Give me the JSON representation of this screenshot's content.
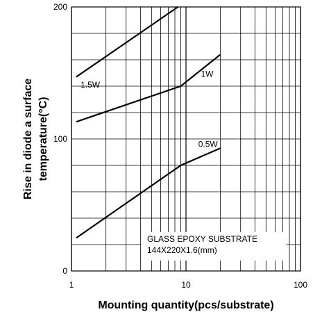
{
  "chart_data": {
    "type": "line",
    "xlabel": "Mounting quantity(pcs/substrate)",
    "ylabel": [
      "Rise in diode a surface",
      "temperature(°C)"
    ],
    "x_scale": "log",
    "xlim": [
      1,
      100
    ],
    "ylim": [
      0,
      200
    ],
    "x_ticks": [
      1,
      10,
      100
    ],
    "y_ticks": [
      0,
      100,
      200
    ],
    "grid": true,
    "series": [
      {
        "name": "1.5W",
        "x": [
          1.1,
          8.5
        ],
        "y": [
          147,
          200
        ]
      },
      {
        "name": "1W",
        "x": [
          1.1,
          9,
          20
        ],
        "y": [
          113,
          140,
          164
        ]
      },
      {
        "name": "0.5W",
        "x": [
          1.1,
          9,
          20
        ],
        "y": [
          25,
          80,
          93
        ]
      }
    ],
    "annotation": [
      "GLASS EPOXY SUBSTRATE",
      "144X220X1.6(mm)"
    ]
  }
}
